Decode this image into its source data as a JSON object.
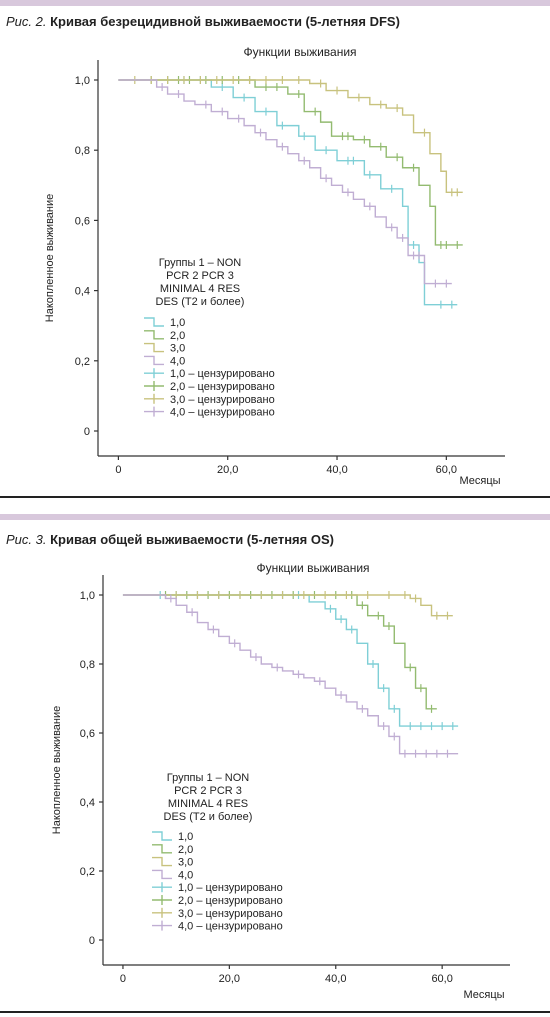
{
  "figures": [
    {
      "caption_prefix": "Рис. 2.",
      "caption_text": "Кривая безрецидивной выживаемости (5-летняя DFS)"
    },
    {
      "caption_prefix": "Рис. 3.",
      "caption_text": "Кривая общей выживаемости (5-летняя OS)"
    }
  ],
  "chart_data": [
    {
      "type": "line",
      "step": true,
      "title": "Функции выживания",
      "xlabel": "Месяцы",
      "ylabel": "Накопленное выживание",
      "xlim": [
        -3,
        70
      ],
      "ylim": [
        0,
        1.05
      ],
      "xticks": [
        0,
        20,
        40,
        60
      ],
      "xtick_labels": [
        "0",
        "20,0",
        "40,0",
        "60,0"
      ],
      "yticks": [
        0,
        0.2,
        0.4,
        0.6,
        0.8,
        1.0
      ],
      "ytick_labels": [
        "0",
        "0,2",
        "0,4",
        "0,6",
        "0,8",
        "1,0"
      ],
      "legend_title": [
        "Группы 1 – NON",
        "PCR 2 PCR 3",
        "MINIMAL 4 RES",
        "DES (T2 и более)"
      ],
      "legend": [
        "1,0",
        "2,0",
        "3,0",
        "4,0",
        "1,0 – цензурировано",
        "2,0 – цензурировано",
        "3,0 – цензурировано",
        "4,0 – цензурировано"
      ],
      "series": [
        {
          "name": "1,0",
          "color": "#7fcfd6",
          "x": [
            0,
            17,
            21,
            25,
            29,
            33,
            36,
            40,
            45,
            48,
            52,
            53,
            55,
            56,
            62
          ],
          "y": [
            1.0,
            0.98,
            0.95,
            0.91,
            0.87,
            0.84,
            0.8,
            0.77,
            0.73,
            0.69,
            0.64,
            0.53,
            0.48,
            0.36,
            0.36
          ],
          "censored_x": [
            9,
            12,
            15,
            19,
            23,
            27,
            30,
            34,
            38,
            42,
            43,
            46,
            50,
            54,
            59,
            61
          ],
          "censored_y": [
            1.0,
            1.0,
            1.0,
            0.98,
            0.95,
            0.91,
            0.87,
            0.84,
            0.8,
            0.77,
            0.77,
            0.73,
            0.69,
            0.53,
            0.36,
            0.36
          ]
        },
        {
          "name": "2,0",
          "color": "#93bb70",
          "x": [
            0,
            25,
            31,
            34,
            37,
            39,
            43,
            46,
            49,
            52,
            55,
            57,
            58,
            63
          ],
          "y": [
            1.0,
            0.98,
            0.96,
            0.91,
            0.88,
            0.84,
            0.83,
            0.81,
            0.78,
            0.75,
            0.7,
            0.64,
            0.53,
            0.53
          ],
          "censored_x": [
            6,
            9,
            11,
            13,
            16,
            19,
            22,
            24,
            27,
            29,
            33,
            36,
            41,
            42,
            45,
            48,
            51,
            54,
            59,
            60,
            62
          ],
          "censored_y": [
            1.0,
            1.0,
            1.0,
            1.0,
            1.0,
            1.0,
            1.0,
            1.0,
            0.98,
            0.98,
            0.96,
            0.91,
            0.84,
            0.84,
            0.83,
            0.81,
            0.78,
            0.75,
            0.53,
            0.53,
            0.53
          ]
        },
        {
          "name": "3,0",
          "color": "#c8c27e",
          "x": [
            0,
            35,
            38,
            42,
            46,
            49,
            52,
            54,
            57,
            59,
            60,
            63
          ],
          "y": [
            1.0,
            0.99,
            0.97,
            0.95,
            0.93,
            0.92,
            0.9,
            0.85,
            0.79,
            0.74,
            0.68,
            0.68
          ],
          "censored_x": [
            3,
            6,
            9,
            12,
            15,
            18,
            21,
            24,
            27,
            30,
            33,
            37,
            40,
            44,
            48,
            51,
            56,
            61,
            62
          ],
          "censored_y": [
            1.0,
            1.0,
            1.0,
            1.0,
            1.0,
            1.0,
            1.0,
            1.0,
            1.0,
            1.0,
            1.0,
            0.99,
            0.97,
            0.95,
            0.93,
            0.92,
            0.85,
            0.68,
            0.68
          ]
        },
        {
          "name": "4,0",
          "color": "#c0aed3",
          "x": [
            0,
            7,
            9,
            12,
            14,
            17,
            20,
            23,
            25,
            27,
            29,
            31,
            33,
            35,
            37,
            39,
            41,
            43,
            45,
            47,
            49,
            51,
            53,
            56,
            61
          ],
          "y": [
            1.0,
            0.98,
            0.96,
            0.94,
            0.93,
            0.91,
            0.89,
            0.87,
            0.85,
            0.83,
            0.81,
            0.79,
            0.77,
            0.75,
            0.72,
            0.7,
            0.68,
            0.66,
            0.64,
            0.61,
            0.58,
            0.55,
            0.5,
            0.42,
            0.42
          ],
          "censored_x": [
            8,
            11,
            16,
            19,
            22,
            26,
            30,
            34,
            38,
            42,
            46,
            50,
            52,
            54,
            55,
            58,
            60
          ],
          "censored_y": [
            0.98,
            0.96,
            0.93,
            0.91,
            0.89,
            0.85,
            0.81,
            0.77,
            0.72,
            0.68,
            0.64,
            0.58,
            0.55,
            0.5,
            0.5,
            0.42,
            0.42
          ]
        }
      ]
    },
    {
      "type": "line",
      "step": true,
      "title": "Функции выживания",
      "xlabel": "Месяцы",
      "ylabel": "Накопленное выживание",
      "xlim": [
        -3,
        72
      ],
      "ylim": [
        0,
        1.05
      ],
      "xticks": [
        0,
        20,
        40,
        60
      ],
      "xtick_labels": [
        "0",
        "20,0",
        "40,0",
        "60,0"
      ],
      "yticks": [
        0,
        0.2,
        0.4,
        0.6,
        0.8,
        1.0
      ],
      "ytick_labels": [
        "0",
        "0,2",
        "0,4",
        "0,6",
        "0,8",
        "1,0"
      ],
      "legend_title": [
        "Группы 1 – NON",
        "PCR 2 PCR 3",
        "MINIMAL 4 RES",
        "DES (T2 и более)"
      ],
      "legend": [
        "1,0",
        "2,0",
        "3,0",
        "4,0",
        "1,0 – цензурировано",
        "2,0 – цензурировано",
        "3,0 – цензурировано",
        "4,0 – цензурировано"
      ],
      "series": [
        {
          "name": "1,0",
          "color": "#7fcfd6",
          "x": [
            0,
            35,
            38,
            40,
            42,
            44,
            46,
            48,
            50,
            52,
            63
          ],
          "y": [
            1.0,
            0.98,
            0.96,
            0.93,
            0.9,
            0.86,
            0.8,
            0.73,
            0.67,
            0.62,
            0.62
          ],
          "censored_x": [
            7,
            10,
            14,
            18,
            22,
            26,
            30,
            33,
            39,
            41,
            43,
            47,
            49,
            51,
            54,
            56,
            58,
            60,
            62
          ],
          "censored_y": [
            1.0,
            1.0,
            1.0,
            1.0,
            1.0,
            1.0,
            1.0,
            1.0,
            0.96,
            0.93,
            0.9,
            0.8,
            0.73,
            0.67,
            0.62,
            0.62,
            0.62,
            0.62,
            0.62
          ]
        },
        {
          "name": "2,0",
          "color": "#93bb70",
          "x": [
            0,
            44,
            46,
            49,
            51,
            53,
            55,
            57,
            59
          ],
          "y": [
            1.0,
            0.97,
            0.94,
            0.91,
            0.86,
            0.79,
            0.73,
            0.67,
            0.67
          ],
          "censored_x": [
            8,
            12,
            16,
            20,
            24,
            28,
            32,
            36,
            40,
            43,
            45,
            48,
            50,
            54,
            56,
            58
          ],
          "censored_y": [
            1.0,
            1.0,
            1.0,
            1.0,
            1.0,
            1.0,
            1.0,
            1.0,
            1.0,
            1.0,
            0.97,
            0.94,
            0.91,
            0.79,
            0.73,
            0.67
          ]
        },
        {
          "name": "3,0",
          "color": "#c8c27e",
          "x": [
            0,
            54,
            56,
            58,
            60,
            62
          ],
          "y": [
            1.0,
            0.99,
            0.97,
            0.94,
            0.94,
            0.94
          ],
          "censored_x": [
            10,
            14,
            18,
            22,
            26,
            30,
            34,
            38,
            42,
            46,
            50,
            53,
            55,
            59,
            61
          ],
          "censored_y": [
            1.0,
            1.0,
            1.0,
            1.0,
            1.0,
            1.0,
            1.0,
            1.0,
            1.0,
            1.0,
            1.0,
            1.0,
            0.99,
            0.94,
            0.94
          ]
        },
        {
          "name": "4,0",
          "color": "#c0aed3",
          "x": [
            0,
            8,
            10,
            12,
            14,
            16,
            18,
            20,
            22,
            24,
            26,
            28,
            30,
            32,
            34,
            36,
            38,
            40,
            42,
            44,
            46,
            48,
            50,
            52,
            63
          ],
          "y": [
            1.0,
            0.99,
            0.97,
            0.95,
            0.92,
            0.9,
            0.88,
            0.86,
            0.84,
            0.82,
            0.8,
            0.79,
            0.78,
            0.77,
            0.76,
            0.75,
            0.73,
            0.71,
            0.69,
            0.67,
            0.65,
            0.62,
            0.59,
            0.54,
            0.54
          ],
          "censored_x": [
            9,
            13,
            17,
            21,
            25,
            29,
            33,
            37,
            41,
            45,
            49,
            51,
            53,
            55,
            57,
            59,
            61
          ],
          "censored_y": [
            0.99,
            0.95,
            0.9,
            0.86,
            0.82,
            0.79,
            0.77,
            0.75,
            0.71,
            0.67,
            0.62,
            0.59,
            0.54,
            0.54,
            0.54,
            0.54,
            0.54
          ]
        }
      ]
    }
  ]
}
